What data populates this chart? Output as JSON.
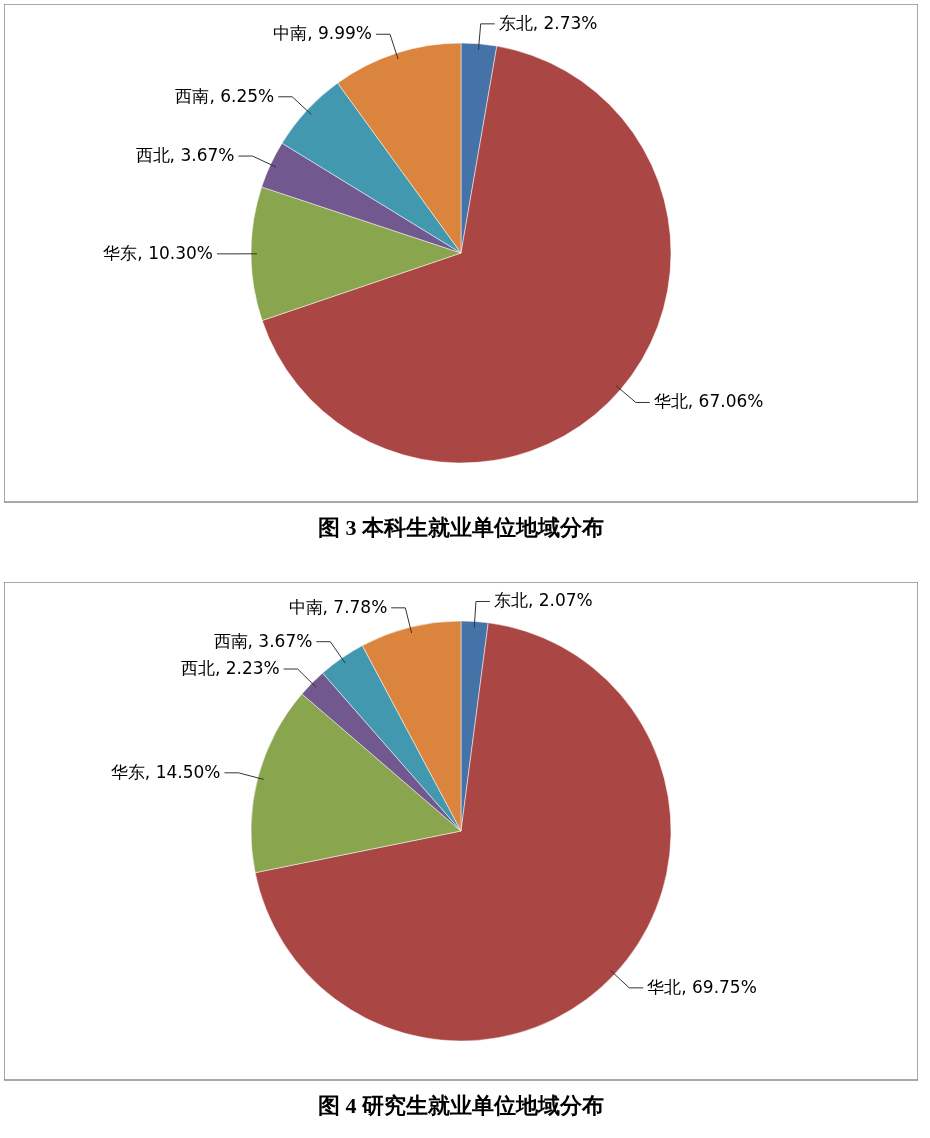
{
  "chart_data": [
    {
      "type": "pie",
      "title": "图 3  本科生就业单位地域分布",
      "categories": [
        "东北",
        "华北",
        "华东",
        "西北",
        "西南",
        "中南"
      ],
      "values": [
        2.73,
        67.06,
        10.3,
        3.67,
        6.25,
        9.99
      ],
      "colors": [
        "#4572a7",
        "#aa4643",
        "#89a54e",
        "#71588f",
        "#4198af",
        "#db843d"
      ],
      "value_labels": [
        ", 2.73%",
        ", 67.06%",
        ", 10.30%",
        ", 3.67%",
        ", 6.25%",
        ", 9.99%"
      ]
    },
    {
      "type": "pie",
      "title": "图 4  研究生就业单位地域分布",
      "categories": [
        "东北",
        "华北",
        "华东",
        "西北",
        "西南",
        "中南"
      ],
      "values": [
        2.07,
        69.75,
        14.5,
        2.23,
        3.67,
        7.78
      ],
      "colors": [
        "#4572a7",
        "#aa4643",
        "#89a54e",
        "#71588f",
        "#4198af",
        "#db843d"
      ],
      "value_labels": [
        ", 2.07%",
        ", 69.75%",
        ", 14.50%",
        ", 2.23%",
        ", 3.67%",
        ", 7.78%"
      ]
    }
  ]
}
